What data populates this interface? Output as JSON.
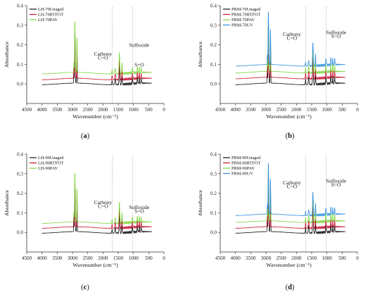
{
  "colors": {
    "black": "#111111",
    "red": "#c8102e",
    "green": "#7cd63a",
    "blue": "#2f8fe0"
  },
  "chart_data": [
    {
      "panel": "a",
      "label_text": "a",
      "type": "line",
      "xlabel": "Wavenumber (cm⁻¹)",
      "ylabel": "Absorbance",
      "xlim": [
        4500,
        0
      ],
      "ylim": [
        -0.1,
        0.4
      ],
      "xticks": [
        "4500",
        "4000",
        "3500",
        "3000",
        "2500",
        "2000",
        "1500",
        "1000",
        "500",
        "0"
      ],
      "yticks": [
        "0.0",
        "0.1",
        "0.2",
        "0.3",
        "0.4"
      ],
      "legend_position": "top-left",
      "annotations": [
        {
          "text": "Carbony",
          "x": 2000,
          "y": 0.145
        },
        {
          "text": "C=O",
          "x": 2000,
          "y": 0.125
        },
        {
          "text": "Sulfoxide",
          "x": 810,
          "y": 0.91
        },
        {
          "text": "S=O",
          "x": 810,
          "y": 0.089
        }
      ],
      "dashed_lines": [
        1700,
        1030
      ],
      "series": [
        {
          "name": "LH-70Unaged",
          "color": "#111111",
          "baseline": 0.0,
          "peaks": [
            0.25,
            0.18,
            0.06,
            0.09,
            0.05
          ]
        },
        {
          "name": "LH-70RTFOT",
          "color": "#c8102e",
          "baseline": 0.025,
          "peaks": [
            0.25,
            0.17,
            0.06,
            0.1,
            0.05
          ]
        },
        {
          "name": "LH-70PAV",
          "color": "#7cd63a",
          "baseline": 0.055,
          "peaks": [
            0.26,
            0.18,
            0.06,
            0.11,
            0.05
          ]
        }
      ]
    },
    {
      "panel": "b",
      "label_text": "b",
      "type": "line",
      "xlabel": "Wavenumber (cm⁻¹)",
      "ylabel": "Absorbance",
      "xlim": [
        4500,
        0
      ],
      "ylim": [
        -0.1,
        0.4
      ],
      "xticks": [
        "4500",
        "4000",
        "3500",
        "3000",
        "2500",
        "2000",
        "1500",
        "1000",
        "500",
        "0"
      ],
      "yticks": [
        "0.0",
        "0.1",
        "0.2",
        "0.3",
        "0.4"
      ],
      "legend_position": "top-left",
      "annotations": [
        {
          "text": "Carbony",
          "x": 2150,
          "y": 0.245
        },
        {
          "text": "C=O",
          "x": 2150,
          "y": 0.225
        },
        {
          "text": "Sulfoxide",
          "x": 700,
          "y": 0.255
        },
        {
          "text": "S=O",
          "x": 700,
          "y": 0.235
        }
      ],
      "dashed_lines": [
        1700,
        1030
      ],
      "series": [
        {
          "name": "PRM-70Unaged",
          "color": "#111111",
          "baseline": 0.0,
          "peaks": [
            0.28,
            0.2,
            0.08,
            0.12,
            0.06
          ]
        },
        {
          "name": "PRM-70RTFOT",
          "color": "#c8102e",
          "baseline": 0.03,
          "peaks": [
            0.27,
            0.2,
            0.08,
            0.12,
            0.06
          ]
        },
        {
          "name": "PRM-70PAV",
          "color": "#7cd63a",
          "baseline": 0.06,
          "peaks": [
            0.27,
            0.19,
            0.07,
            0.12,
            0.06
          ]
        },
        {
          "name": "PRM-70UV",
          "color": "#2f8fe0",
          "baseline": 0.095,
          "peaks": [
            0.27,
            0.18,
            0.06,
            0.12,
            0.06
          ]
        }
      ]
    },
    {
      "panel": "c",
      "label_text": "c",
      "type": "line",
      "xlabel": "Wavenumber (cm⁻¹)",
      "ylabel": "Absorbance",
      "xlim": [
        4500,
        0
      ],
      "ylim": [
        -0.1,
        0.4
      ],
      "xticks": [
        "4500",
        "4000",
        "3500",
        "3000",
        "2500",
        "2000",
        "1500",
        "1000",
        "500",
        "0"
      ],
      "yticks": [
        "0.0",
        "0.1",
        "0.2",
        "0.3",
        "0.4"
      ],
      "legend_position": "top-left",
      "annotations": [
        {
          "text": "Carbony",
          "x": 2000,
          "y": 0.145
        },
        {
          "text": "C=O",
          "x": 2000,
          "y": 0.125
        },
        {
          "text": "Sulfoxide",
          "x": 810,
          "y": 0.12
        },
        {
          "text": "S=O",
          "x": 810,
          "y": 0.1
        }
      ],
      "dashed_lines": [
        1700,
        1030
      ],
      "series": [
        {
          "name": "LH-90Unaged",
          "color": "#111111",
          "baseline": 0.0,
          "peaks": [
            0.24,
            0.17,
            0.06,
            0.09,
            0.05
          ]
        },
        {
          "name": "LH-90RTFOT",
          "color": "#c8102e",
          "baseline": 0.025,
          "peaks": [
            0.24,
            0.17,
            0.06,
            0.1,
            0.05
          ]
        },
        {
          "name": "LH-90PAV",
          "color": "#7cd63a",
          "baseline": 0.05,
          "peaks": [
            0.25,
            0.17,
            0.06,
            0.11,
            0.05
          ]
        }
      ]
    },
    {
      "panel": "d",
      "label_text": "d",
      "type": "line",
      "xlabel": "Wavenumber (cm⁻¹)",
      "ylabel": "Absorbance",
      "xlim": [
        4500,
        0
      ],
      "ylim": [
        -0.1,
        0.4
      ],
      "xticks": [
        "4500",
        "4000",
        "3500",
        "3000",
        "2500",
        "2000",
        "1500",
        "1000",
        "500",
        "0"
      ],
      "yticks": [
        "0.0",
        "0.1",
        "0.2",
        "0.3",
        "0.4"
      ],
      "legend_position": "top-left",
      "annotations": [
        {
          "text": "Carbony",
          "x": 2150,
          "y": 0.245
        },
        {
          "text": "C=O",
          "x": 2150,
          "y": 0.225
        },
        {
          "text": "Sulfoxide",
          "x": 700,
          "y": 0.255
        },
        {
          "text": "S=O",
          "x": 700,
          "y": 0.235
        }
      ],
      "dashed_lines": [
        1700,
        1030
      ],
      "series": [
        {
          "name": "PRM-90Unaged",
          "color": "#111111",
          "baseline": 0.0,
          "peaks": [
            0.28,
            0.2,
            0.08,
            0.12,
            0.06
          ]
        },
        {
          "name": "PRM-90RTFOT",
          "color": "#c8102e",
          "baseline": 0.025,
          "peaks": [
            0.27,
            0.2,
            0.08,
            0.12,
            0.06
          ]
        },
        {
          "name": "PRM-90PAV",
          "color": "#7cd63a",
          "baseline": 0.055,
          "peaks": [
            0.27,
            0.19,
            0.07,
            0.12,
            0.06
          ]
        },
        {
          "name": "PRM-90UV",
          "color": "#2f8fe0",
          "baseline": 0.09,
          "peaks": [
            0.26,
            0.18,
            0.06,
            0.12,
            0.06
          ]
        }
      ]
    }
  ]
}
